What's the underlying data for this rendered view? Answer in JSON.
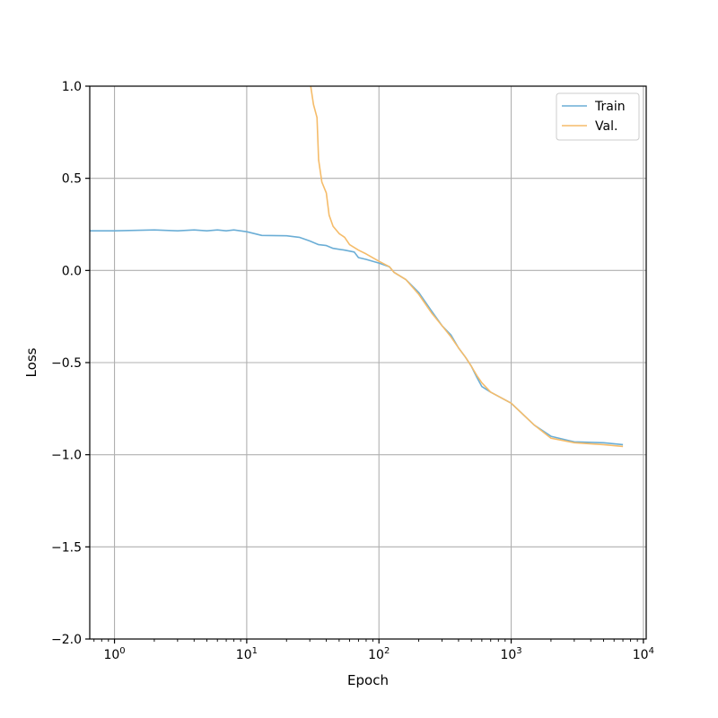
{
  "chart_data": {
    "type": "line",
    "title": "",
    "xlabel": "Epoch",
    "ylabel": "Loss",
    "xscale": "log",
    "xlim": [
      0.65,
      10500
    ],
    "ylim": [
      -2.0,
      1.0
    ],
    "grid": true,
    "legend_position": "top-right",
    "x_ticks": [
      {
        "value": 1,
        "label": "10^0"
      },
      {
        "value": 10,
        "label": "10^1"
      },
      {
        "value": 100,
        "label": "10^2"
      },
      {
        "value": 1000,
        "label": "10^3"
      },
      {
        "value": 10000,
        "label": "10^4"
      }
    ],
    "y_ticks": [
      {
        "value": 1.0,
        "label": "1.0"
      },
      {
        "value": 0.5,
        "label": "0.5"
      },
      {
        "value": 0.0,
        "label": "0.0"
      },
      {
        "value": -0.5,
        "label": "−0.5"
      },
      {
        "value": -1.0,
        "label": "−1.0"
      },
      {
        "value": -1.5,
        "label": "−1.5"
      },
      {
        "value": -2.0,
        "label": "−2.0"
      }
    ],
    "series": [
      {
        "name": "Train",
        "color": "#6baed6",
        "x": [
          0.65,
          1,
          2,
          3,
          4,
          5,
          6,
          7,
          8,
          10,
          13,
          20,
          25,
          30,
          35,
          40,
          45,
          55,
          65,
          70,
          80,
          100,
          120,
          130,
          160,
          200,
          250,
          300,
          350,
          400,
          450,
          500,
          550,
          600,
          700,
          1000,
          1500,
          2000,
          3000,
          5000,
          7000
        ],
        "y": [
          0.215,
          0.215,
          0.22,
          0.215,
          0.22,
          0.215,
          0.22,
          0.215,
          0.22,
          0.21,
          0.19,
          0.188,
          0.18,
          0.16,
          0.14,
          0.135,
          0.12,
          0.11,
          0.1,
          0.07,
          0.06,
          0.04,
          0.02,
          -0.01,
          -0.05,
          -0.12,
          -0.22,
          -0.3,
          -0.35,
          -0.42,
          -0.47,
          -0.52,
          -0.58,
          -0.63,
          -0.66,
          -0.72,
          -0.84,
          -0.9,
          -0.93,
          -0.935,
          -0.945
        ]
      },
      {
        "name": "Val.",
        "color": "#f5bc6a",
        "x": [
          30.5,
          32,
          34,
          35,
          37,
          40,
          42,
          45,
          50,
          55,
          60,
          70,
          80,
          100,
          120,
          130,
          160,
          200,
          250,
          300,
          350,
          400,
          450,
          500,
          550,
          600,
          700,
          1000,
          1500,
          2000,
          3000,
          5000,
          7000
        ],
        "y": [
          1.0,
          0.9,
          0.83,
          0.6,
          0.48,
          0.42,
          0.3,
          0.24,
          0.2,
          0.18,
          0.14,
          0.11,
          0.09,
          0.05,
          0.02,
          -0.01,
          -0.05,
          -0.13,
          -0.23,
          -0.3,
          -0.36,
          -0.42,
          -0.47,
          -0.52,
          -0.57,
          -0.61,
          -0.66,
          -0.72,
          -0.84,
          -0.91,
          -0.935,
          -0.945,
          -0.955
        ]
      }
    ]
  }
}
